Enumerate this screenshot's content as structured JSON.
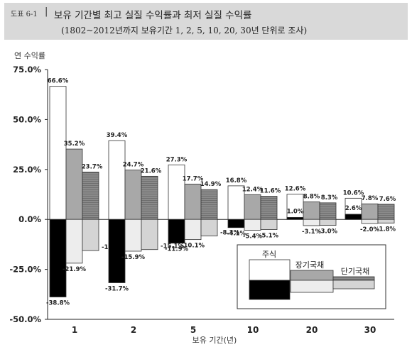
{
  "header": {
    "label": "도표 6-1",
    "title": "보유 기간별 최고 실질 수익률과 최저 실질 수익률",
    "subtitle": "(1802~2012년까지 보유기간 1, 2, 5, 10, 20, 30년 단위로 조사)"
  },
  "colors": {
    "stock": "#ffffff",
    "long_bond": "#a8a8a8",
    "short_bond": "#8a8a8a",
    "min_stock": "#000000",
    "min_long_bond": "#ededed",
    "min_short_bond": "#d4d4d4"
  },
  "chart_data": {
    "type": "bar",
    "ylabel": "연 수익률",
    "xlabel": "보유 기간(년)",
    "ylim": [
      -50,
      75
    ],
    "yticks": [
      "75.0%",
      "50.0%",
      "25.0%",
      "0.0%",
      "-25.0%",
      "-50.0%"
    ],
    "categories": [
      "1",
      "2",
      "5",
      "10",
      "20",
      "30"
    ],
    "max_series": [
      {
        "name": "주식",
        "values": [
          66.6,
          39.4,
          27.3,
          16.8,
          12.6,
          10.6
        ],
        "labels": [
          "66.6%",
          "39.4%",
          "27.3%",
          "16.8%",
          "12.6%",
          "10.6%"
        ]
      },
      {
        "name": "장기국채",
        "values": [
          35.2,
          24.7,
          17.7,
          12.4,
          8.8,
          7.8
        ],
        "labels": [
          "35.2%",
          "24.7%",
          "17.7%",
          "12.4%",
          "8.8%",
          "7.8%"
        ]
      },
      {
        "name": "단기국채",
        "values": [
          23.7,
          21.6,
          14.9,
          11.6,
          8.3,
          7.6
        ],
        "labels": [
          "23.7%",
          "21.6%",
          "14.9%",
          "11.6%",
          "8.3%",
          "7.6%"
        ]
      }
    ],
    "min_series": [
      {
        "name": "주식",
        "values": [
          -38.8,
          -31.7,
          -11.9,
          -4.1,
          1.0,
          2.6
        ],
        "labels": [
          "-38.8%",
          "-31.7%",
          "-11.9%",
          "-4.1%",
          "1.0%",
          "2.6%"
        ]
      },
      {
        "name": "장기국채",
        "values": [
          -21.9,
          -15.9,
          -10.1,
          -5.4,
          -3.1,
          -2.0
        ],
        "labels": [
          "-21.9%",
          "-15.9%",
          "-10.1%",
          "-5.4%",
          "-3.1%",
          "-2.0%"
        ]
      },
      {
        "name": "단기국채",
        "values": [
          -15.6,
          -15.1,
          -8.3,
          -5.1,
          -3.0,
          -1.8
        ],
        "labels": [
          "-15.6%",
          "-15.1%",
          "-8.3%",
          "-5.1%",
          "-3.0%",
          "-1.8%"
        ]
      }
    ],
    "legend": {
      "position": "bottom-right",
      "entries": [
        "주식",
        "장기국채",
        "단기국채"
      ]
    }
  }
}
